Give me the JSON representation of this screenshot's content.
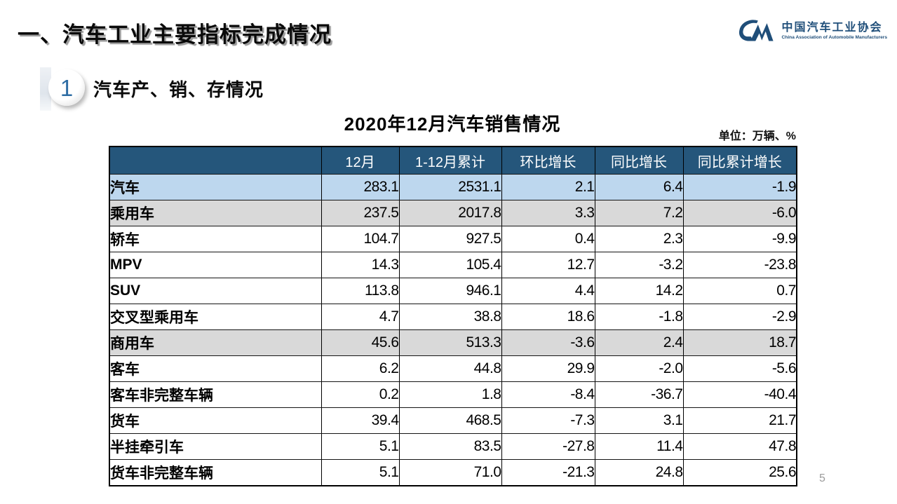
{
  "slide": {
    "main_title": "一、汽车工业主要指标完成情况",
    "page_number": "5"
  },
  "logo": {
    "name_cn": "中国汽车工业协会",
    "name_en": "China Association of Automobile Manufacturers",
    "color": "#1F4E79"
  },
  "section": {
    "number": "1",
    "title": "汽车产、销、存情况"
  },
  "table": {
    "title": "2020年12月汽车销售情况",
    "unit_note": "单位：万辆、%",
    "columns": [
      "",
      "12月",
      "1-12月累计",
      "环比增长",
      "同比增长",
      "同比累计增长"
    ],
    "colors": {
      "header_bg": "#25567B",
      "header_text": "#FFFFFF",
      "row_highlight_blue": "#BDD7EE",
      "row_highlight_gray": "#D9D9D9"
    },
    "rows": [
      {
        "label": "汽车",
        "indent": 1,
        "highlight": "blue",
        "values": [
          "283.1",
          "2531.1",
          "2.1",
          "6.4",
          "-1.9"
        ]
      },
      {
        "label": "乘用车",
        "indent": 2,
        "highlight": "gray",
        "values": [
          "237.5",
          "2017.8",
          "3.3",
          "7.2",
          "-6.0"
        ]
      },
      {
        "label": "轿车",
        "indent": 3,
        "highlight": "none",
        "values": [
          "104.7",
          "927.5",
          "0.4",
          "2.3",
          "-9.9"
        ]
      },
      {
        "label": "MPV",
        "indent": 3,
        "highlight": "none",
        "values": [
          "14.3",
          "105.4",
          "12.7",
          "-3.2",
          "-23.8"
        ]
      },
      {
        "label": "SUV",
        "indent": 3,
        "highlight": "none",
        "values": [
          "113.8",
          "946.1",
          "4.4",
          "14.2",
          "0.7"
        ]
      },
      {
        "label": "交叉型乘用车",
        "indent": 3,
        "highlight": "none",
        "values": [
          "4.7",
          "38.8",
          "18.6",
          "-1.8",
          "-2.9"
        ]
      },
      {
        "label": "商用车",
        "indent": 2,
        "highlight": "gray",
        "values": [
          "45.6",
          "513.3",
          "-3.6",
          "2.4",
          "18.7"
        ]
      },
      {
        "label": "客车",
        "indent": 3,
        "highlight": "none",
        "values": [
          "6.2",
          "44.8",
          "29.9",
          "-2.0",
          "-5.6"
        ]
      },
      {
        "label": "客车非完整车辆",
        "indent": 4,
        "highlight": "none",
        "values": [
          "0.2",
          "1.8",
          "-8.4",
          "-36.7",
          "-40.4"
        ]
      },
      {
        "label": "货车",
        "indent": 3,
        "highlight": "none",
        "values": [
          "39.4",
          "468.5",
          "-7.3",
          "3.1",
          "21.7"
        ]
      },
      {
        "label": "半挂牵引车",
        "indent": 4,
        "highlight": "none",
        "values": [
          "5.1",
          "83.5",
          "-27.8",
          "11.4",
          "47.8"
        ]
      },
      {
        "label": "货车非完整车辆",
        "indent": 4,
        "highlight": "none",
        "values": [
          "5.1",
          "71.0",
          "-21.3",
          "24.8",
          "25.6"
        ]
      }
    ]
  }
}
